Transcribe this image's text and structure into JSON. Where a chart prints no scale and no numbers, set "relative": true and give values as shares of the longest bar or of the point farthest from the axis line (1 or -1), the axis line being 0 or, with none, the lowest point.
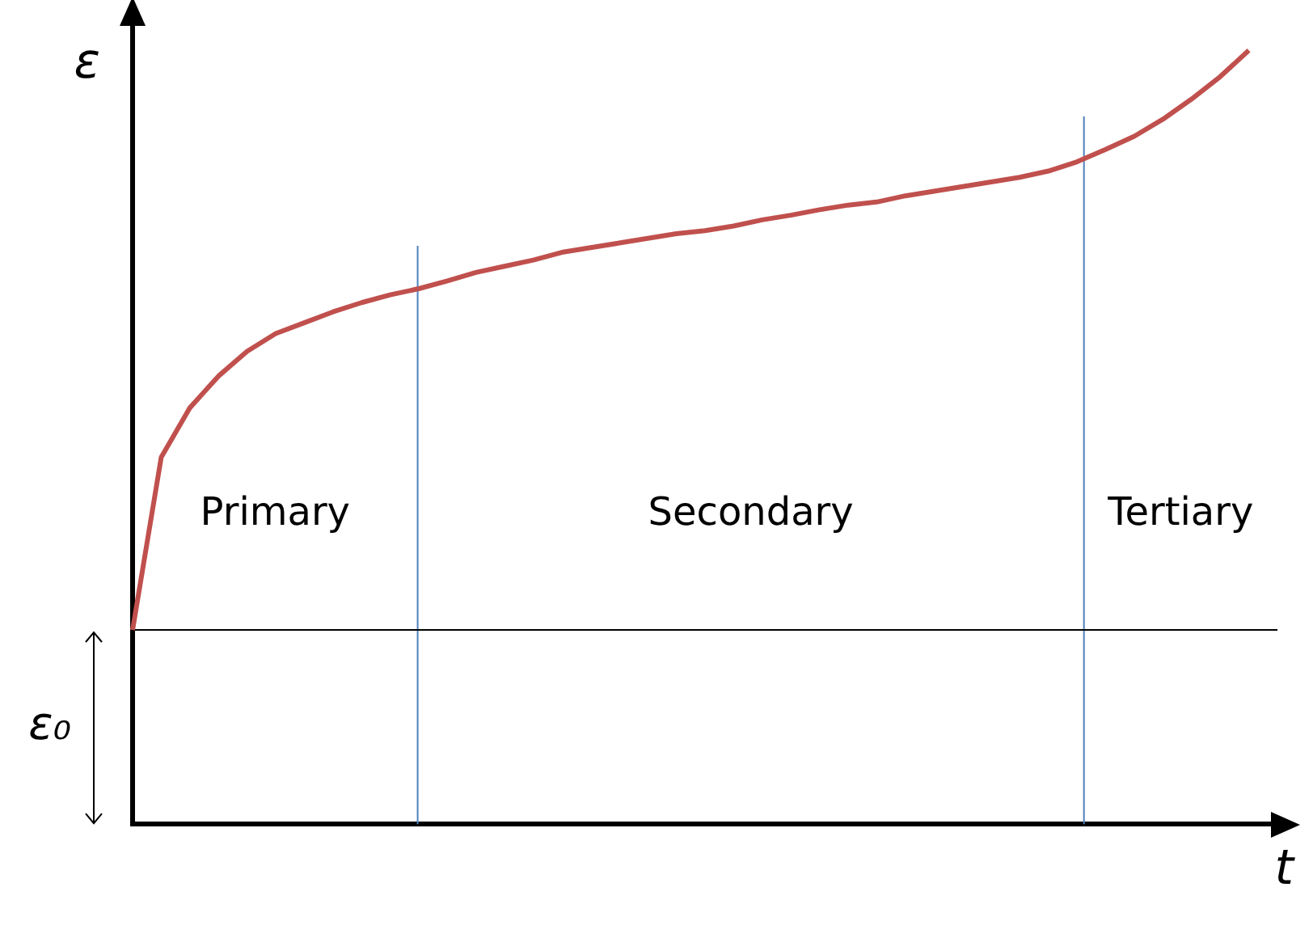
{
  "chart_data": {
    "type": "line",
    "xlabel": "t",
    "ylabel": "ε",
    "relative": true,
    "categories": [
      null,
      null,
      null,
      null,
      null,
      null,
      null,
      null,
      null,
      null,
      null,
      null,
      null,
      null,
      null,
      null,
      null,
      null,
      null,
      null,
      null,
      null,
      null,
      null,
      null,
      null,
      null,
      null,
      null,
      null,
      null,
      null,
      null,
      null,
      null,
      null,
      null,
      null,
      null,
      null,
      null
    ],
    "series": [
      {
        "color": "#c0504d",
        "values": [
          0.251,
          0.474,
          0.538,
          0.579,
          0.611,
          0.634,
          0.648,
          0.662,
          0.674,
          0.684,
          0.692,
          0.702,
          0.713,
          0.721,
          0.729,
          0.739,
          0.745,
          0.751,
          0.757,
          0.763,
          0.767,
          0.773,
          0.781,
          0.787,
          0.794,
          0.8,
          0.804,
          0.812,
          0.818,
          0.824,
          0.83,
          0.836,
          0.844,
          0.856,
          0.872,
          0.889,
          0.911,
          0.937,
          0.966,
          1,
          null
        ]
      }
    ],
    "ref_lines": [
      {
        "axis": "y",
        "value": 0.251,
        "label": "ε₀",
        "color": "#000000"
      }
    ],
    "annotations": [
      "Primary",
      "Secondary",
      "Tertiary"
    ],
    "grid": false,
    "legend": false,
    "marker": "none",
    "line_style": "solid"
  }
}
